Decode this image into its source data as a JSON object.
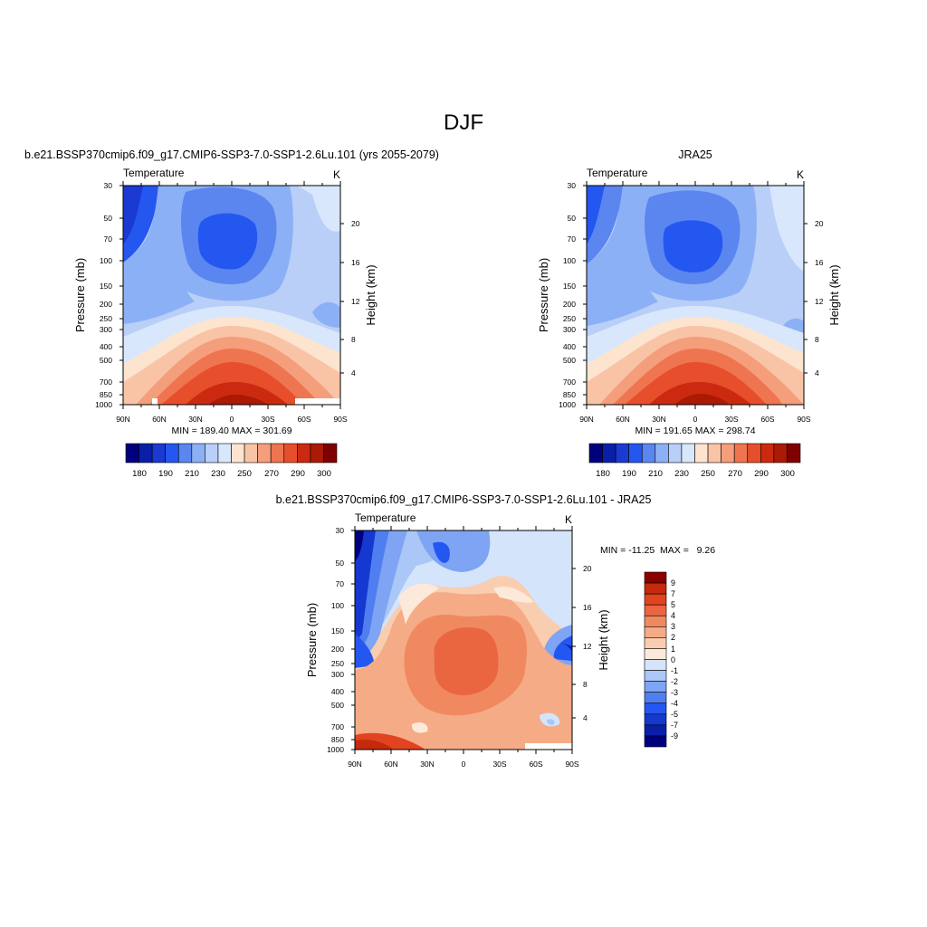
{
  "page": {
    "title": "DJF"
  },
  "colors": {
    "abs_palette": [
      "#00007f",
      "#0a1fa8",
      "#1a3ad1",
      "#2457f0",
      "#5b86f0",
      "#8cb0f5",
      "#b9cff8",
      "#d8e7fb",
      "#fde4cf",
      "#f9c4a6",
      "#f59e7b",
      "#ee7550",
      "#e74e2c",
      "#cc2a10",
      "#aa1a05",
      "#7f0000"
    ],
    "diff_palette": [
      "#00007f",
      "#0a1fa8",
      "#1438d0",
      "#2457f0",
      "#4f7ef0",
      "#7ea4f3",
      "#aac7f7",
      "#d4e4fb",
      "#fde9d9",
      "#f9ceb0",
      "#f5ab86",
      "#f08960",
      "#ea6640",
      "#e24320",
      "#c42a0b",
      "#8b0000"
    ]
  },
  "chart_data": [
    {
      "type": "heatmap",
      "title": "b.e21.BSSP370cmip6.f09_g17.CMIP6-SSP3-7.0-SSP1-2.6Lu.101 (yrs 2055-2079)",
      "left_label": "Temperature",
      "right_label": "K",
      "ylabel": "Pressure (mb)",
      "ylabel_right": "Height (km)",
      "x_ticks": [
        "90N",
        "60N",
        "30N",
        "0",
        "30S",
        "60S",
        "90S"
      ],
      "y_ticks": [
        "30",
        "50",
        "70",
        "100",
        "150",
        "200",
        "250",
        "300",
        "400",
        "500",
        "700",
        "850",
        "1000"
      ],
      "y2_ticks": [
        "20",
        "16",
        "12",
        "8",
        "4"
      ],
      "stats": "MIN = 189.40  MAX = 301.69",
      "colorbar_labels": [
        "180",
        "190",
        "210",
        "230",
        "250",
        "270",
        "290",
        "300"
      ],
      "min": 189.4,
      "max": 301.69
    },
    {
      "type": "heatmap",
      "title": "JRA25",
      "left_label": "Temperature",
      "right_label": "K",
      "ylabel": "Pressure (mb)",
      "ylabel_right": "Height (km)",
      "x_ticks": [
        "90N",
        "60N",
        "30N",
        "0",
        "30S",
        "60S",
        "90S"
      ],
      "y_ticks": [
        "30",
        "50",
        "70",
        "100",
        "150",
        "200",
        "250",
        "300",
        "400",
        "500",
        "700",
        "850",
        "1000"
      ],
      "y2_ticks": [
        "20",
        "16",
        "12",
        "8",
        "4"
      ],
      "stats": "MIN = 191.65  MAX = 298.74",
      "colorbar_labels": [
        "180",
        "190",
        "210",
        "230",
        "250",
        "270",
        "290",
        "300"
      ],
      "min": 191.65,
      "max": 298.74
    },
    {
      "type": "heatmap",
      "title": "b.e21.BSSP370cmip6.f09_g17.CMIP6-SSP3-7.0-SSP1-2.6Lu.101 - JRA25",
      "left_label": "Temperature",
      "right_label": "K",
      "ylabel": "Pressure (mb)",
      "ylabel_right": "Height (km)",
      "x_ticks": [
        "90N",
        "60N",
        "30N",
        "0",
        "30S",
        "60S",
        "90S"
      ],
      "y_ticks": [
        "30",
        "50",
        "70",
        "100",
        "150",
        "200",
        "250",
        "300",
        "400",
        "500",
        "700",
        "850",
        "1000"
      ],
      "y2_ticks": [
        "20",
        "16",
        "12",
        "8",
        "4"
      ],
      "stats": "MIN = -11.25  MAX =   9.26",
      "colorbar_labels": [
        "9",
        "7",
        "5",
        "4",
        "3",
        "2",
        "1",
        "0",
        "-1",
        "-2",
        "-3",
        "-4",
        "-5",
        "-7",
        "-9"
      ],
      "min": -11.25,
      "max": 9.26
    }
  ]
}
